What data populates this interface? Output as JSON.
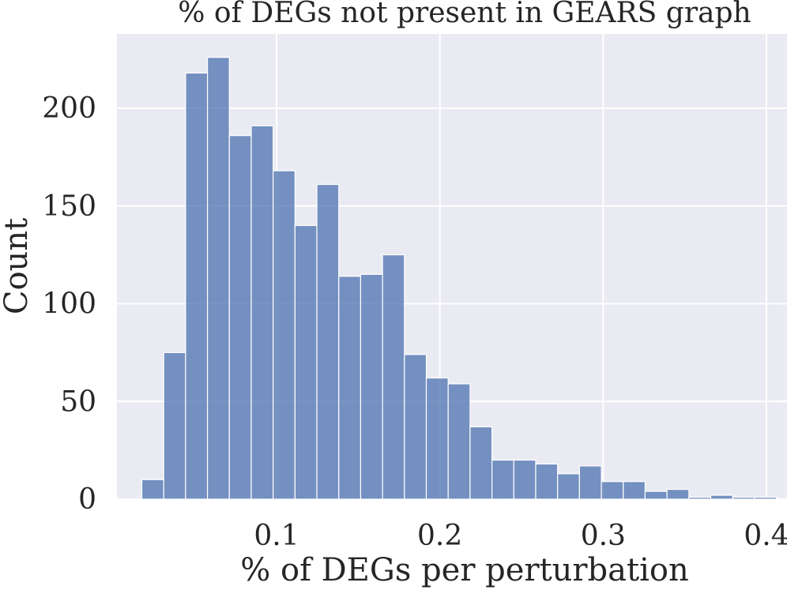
{
  "chart_data": {
    "type": "bar",
    "title": "% of DEGs not present in GEARS graph",
    "xlabel": "% of DEGs per perturbation",
    "ylabel": "Count",
    "xlim": [
      0.0,
      0.4
    ],
    "ylim": [
      0,
      240
    ],
    "xticks": [
      0.1,
      0.2,
      0.3,
      0.4
    ],
    "xtick_labels": [
      "0.1",
      "0.2",
      "0.3",
      "0.4"
    ],
    "yticks": [
      0,
      50,
      100,
      150,
      200
    ],
    "ytick_labels": [
      "0",
      "50",
      "100",
      "150",
      "200"
    ],
    "grid": true,
    "bar_color": "#4c72b0",
    "plot_background": "#eaeaf2",
    "bin_width": 0.0134,
    "bins": [
      {
        "x0": 0.0175,
        "value": 10
      },
      {
        "x0": 0.0309,
        "value": 75
      },
      {
        "x0": 0.0443,
        "value": 218
      },
      {
        "x0": 0.0577,
        "value": 226
      },
      {
        "x0": 0.0711,
        "value": 186
      },
      {
        "x0": 0.0845,
        "value": 191
      },
      {
        "x0": 0.0979,
        "value": 168
      },
      {
        "x0": 0.1113,
        "value": 140
      },
      {
        "x0": 0.1247,
        "value": 161
      },
      {
        "x0": 0.1381,
        "value": 114
      },
      {
        "x0": 0.1515,
        "value": 115
      },
      {
        "x0": 0.1649,
        "value": 125
      },
      {
        "x0": 0.1783,
        "value": 74
      },
      {
        "x0": 0.1917,
        "value": 62
      },
      {
        "x0": 0.2051,
        "value": 59
      },
      {
        "x0": 0.2185,
        "value": 37
      },
      {
        "x0": 0.2319,
        "value": 20
      },
      {
        "x0": 0.2453,
        "value": 20
      },
      {
        "x0": 0.2587,
        "value": 18
      },
      {
        "x0": 0.2721,
        "value": 13
      },
      {
        "x0": 0.2855,
        "value": 17
      },
      {
        "x0": 0.2989,
        "value": 9
      },
      {
        "x0": 0.3123,
        "value": 9
      },
      {
        "x0": 0.3257,
        "value": 4
      },
      {
        "x0": 0.3391,
        "value": 5
      },
      {
        "x0": 0.3525,
        "value": 1
      },
      {
        "x0": 0.3659,
        "value": 2
      },
      {
        "x0": 0.3793,
        "value": 1
      },
      {
        "x0": 0.3927,
        "value": 1
      }
    ]
  }
}
